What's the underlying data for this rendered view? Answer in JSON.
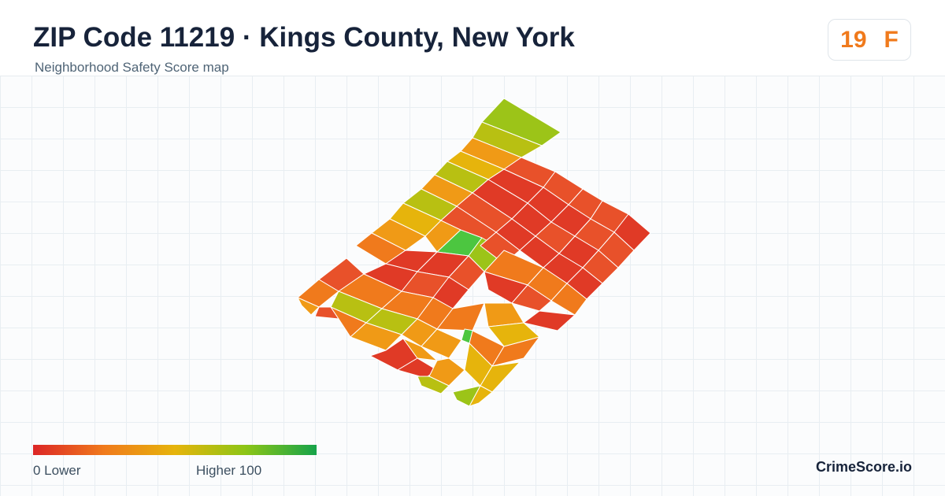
{
  "header": {
    "title": "ZIP Code 11219 · Kings County, New York",
    "subtitle": "Neighborhood Safety Score map"
  },
  "score": {
    "value": "19",
    "grade": "F",
    "color": "#f07a1c"
  },
  "legend": {
    "min_label": "0  Lower",
    "max_label": "Higher  100",
    "colors": [
      "#dc2626",
      "#f07a1c",
      "#e6b40c",
      "#8cc516",
      "#16a34a"
    ]
  },
  "brand": "CrimeScore.io",
  "map": {
    "region": "ZIP 11219",
    "tile_colors": {
      "red": "#e03a26",
      "red_orange": "#e8512a",
      "orange": "#f07a1c",
      "amber": "#f09a16",
      "yellow": "#e6b40c",
      "yellow_green": "#b8c012",
      "lime": "#9cc418",
      "green": "#4cc640"
    }
  }
}
